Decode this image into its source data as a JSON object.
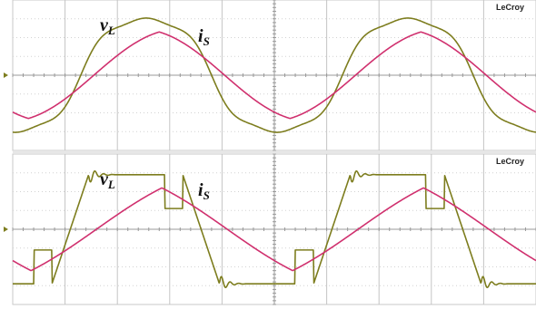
{
  "chart_data": [
    {
      "type": "line",
      "brand": "LeCroy",
      "grid": true,
      "colors": {
        "v_L": "#7d7d1e",
        "i_S": "#d0306e"
      },
      "labels": {
        "v": "v",
        "v_sub": "L",
        "i": "i",
        "i_sub": "S"
      },
      "divisions": {
        "x": 10,
        "y": 8
      },
      "series": [
        {
          "key": "v_L",
          "shape": "quasi-sine",
          "amplitude": 3.1,
          "period_div": 5.0,
          "phase_div": 1.3
        },
        {
          "key": "i_S",
          "shape": "triangular-sine",
          "amplitude": 2.3,
          "period_div": 5.0,
          "phase_div": 1.55
        }
      ]
    },
    {
      "type": "line",
      "brand": "LeCroy",
      "grid": true,
      "colors": {
        "v_L": "#7d7d1e",
        "i_S": "#d0306e"
      },
      "labels": {
        "v": "v",
        "v_sub": "L",
        "i": "i",
        "i_sub": "S"
      },
      "divisions": {
        "x": 10,
        "y": 8
      },
      "series": [
        {
          "key": "v_L",
          "shape": "trapezoid-ringing",
          "amplitude": 2.9,
          "period_div": 5.0,
          "phase_div": 1.1
        },
        {
          "key": "i_S",
          "shape": "triangular",
          "amplitude": 2.2,
          "period_div": 5.0,
          "phase_div": 1.6
        }
      ]
    }
  ]
}
